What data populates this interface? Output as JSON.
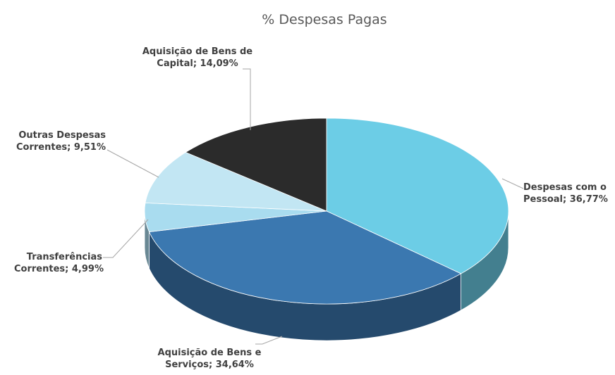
{
  "chart_data": {
    "type": "pie3d",
    "title": "% Despesas Pagas",
    "categories": [
      "Despesas com o Pessoal",
      "Aquisição de Bens e Serviços",
      "Transferências Correntes",
      "Outras Despesas Correntes",
      "Aquisição de Bens de Capital"
    ],
    "values": [
      36.77,
      34.64,
      4.99,
      9.51,
      14.09
    ],
    "value_labels": [
      "36,77%",
      "34,64%",
      "4,99%",
      "9,51%",
      "14,09%"
    ],
    "label_separator": "; ",
    "colors": [
      "#6ccde6",
      "#3b78b0",
      "#a9dcef",
      "#c2e6f3",
      "#2b2b2b"
    ]
  }
}
